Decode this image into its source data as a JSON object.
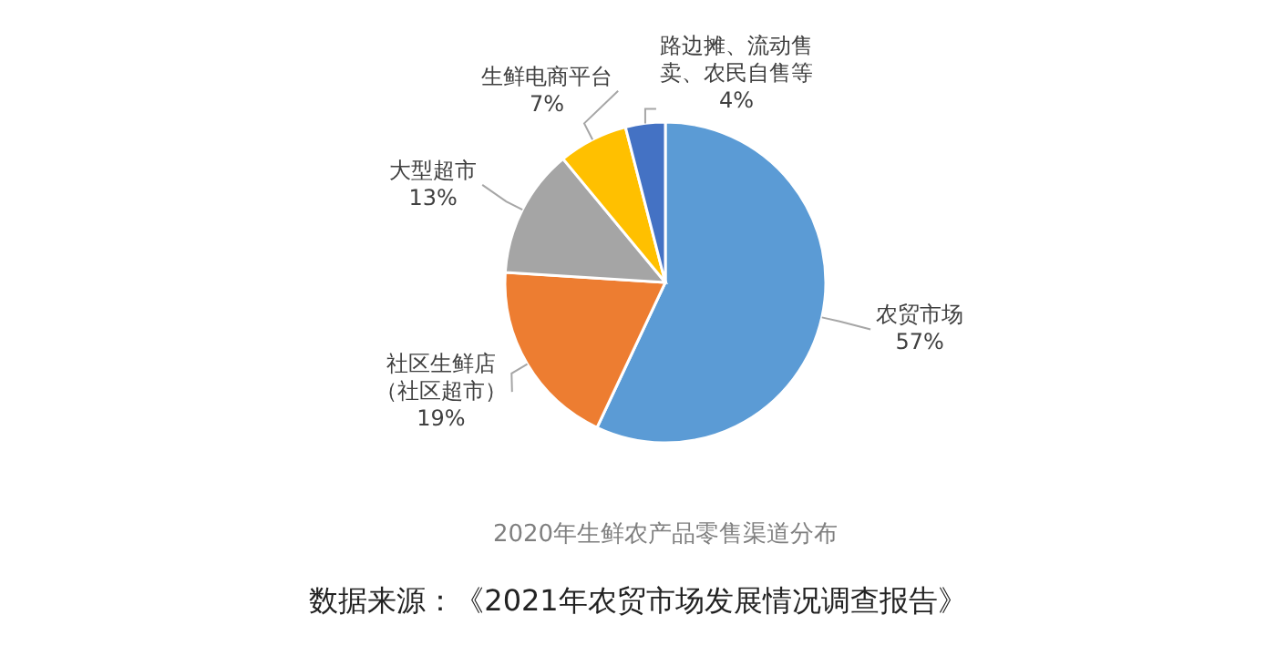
{
  "chart_data": {
    "type": "pie",
    "title": "2020年生鲜农产品零售渠道分布",
    "categories": [
      "农贸市场",
      "社区生鲜店（社区超市）",
      "大型超市",
      "生鲜电商平台",
      "路边摊、流动售卖、农民自售等"
    ],
    "values": [
      57,
      19,
      13,
      7,
      4
    ],
    "value_labels": [
      "57%",
      "19%",
      "13%",
      "7%",
      "4%"
    ],
    "colors": [
      "#5b9bd5",
      "#ed7d31",
      "#a5a5a5",
      "#ffc000",
      "#4472c4"
    ],
    "annotations": [
      "数据来源：《2021年农贸市场发展情况调查报告》"
    ]
  }
}
